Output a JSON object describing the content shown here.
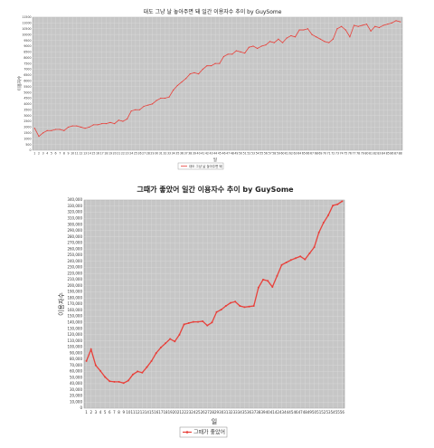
{
  "chart_data": [
    {
      "type": "line",
      "title": "대도 그냥 날 놓아주면 돼 일간 이용자수 추이 by GuySome",
      "xlabel": "일",
      "ylabel": "이용자수",
      "legend": {
        "position": "bottom-center",
        "entries": [
          "대도 그냥 날 놓아주면 돼"
        ]
      },
      "grid": true,
      "x": [
        1,
        2,
        3,
        4,
        5,
        6,
        7,
        8,
        9,
        10,
        11,
        12,
        13,
        14,
        15,
        16,
        17,
        18,
        19,
        20,
        21,
        22,
        23,
        24,
        25,
        26,
        27,
        28,
        29,
        30,
        31,
        32,
        33,
        34,
        35,
        36,
        37,
        38,
        39,
        40,
        41,
        42,
        43,
        44,
        45,
        46,
        47,
        48,
        49,
        50,
        51,
        52,
        53,
        54,
        55,
        56,
        57,
        58,
        59,
        60,
        61,
        62,
        63,
        64,
        65,
        66,
        67,
        68,
        69,
        70,
        71,
        72,
        73,
        74,
        75,
        76,
        77,
        78,
        79,
        80,
        81,
        82,
        83,
        84,
        85,
        86,
        87,
        88
      ],
      "ylim": [
        0,
        11500
      ],
      "yticks": [
        0,
        500,
        1000,
        1500,
        2000,
        2500,
        3000,
        3500,
        4000,
        4500,
        5000,
        5500,
        6000,
        6500,
        7000,
        7500,
        8000,
        8500,
        9000,
        9500,
        10000,
        10500,
        11000,
        11500
      ],
      "series": [
        {
          "name": "대도 그냥 날 놓아주면 돼",
          "color": "#e8403a",
          "values": [
            1900,
            1200,
            1500,
            1700,
            1700,
            1800,
            1800,
            1700,
            2000,
            2100,
            2100,
            2000,
            1900,
            2000,
            2200,
            2200,
            2300,
            2300,
            2400,
            2300,
            2600,
            2500,
            2700,
            3400,
            3500,
            3500,
            3800,
            3900,
            4000,
            4300,
            4500,
            4500,
            4600,
            5200,
            5600,
            5900,
            6200,
            6600,
            6700,
            6600,
            7000,
            7300,
            7300,
            7500,
            7500,
            8100,
            8300,
            8300,
            8600,
            8500,
            8400,
            8900,
            9000,
            8800,
            9000,
            9100,
            9400,
            9300,
            9600,
            9300,
            9700,
            9900,
            9800,
            10400,
            10400,
            10500,
            10000,
            9800,
            9600,
            9400,
            9300,
            9600,
            10500,
            10700,
            10400,
            9800,
            10800,
            10700,
            10800,
            10900,
            10300,
            10700,
            10600,
            10800,
            10900,
            11000,
            11200,
            11100
          ]
        }
      ]
    },
    {
      "type": "line",
      "title": "그때가 좋았어 일간 이용자수 추이 by GuySome",
      "xlabel": "일",
      "ylabel": "이용자수",
      "legend": {
        "position": "bottom-center",
        "entries": [
          "그때가 좋았어"
        ]
      },
      "grid": true,
      "x": [
        1,
        2,
        3,
        4,
        5,
        6,
        7,
        8,
        9,
        10,
        11,
        12,
        13,
        14,
        15,
        16,
        17,
        18,
        19,
        20,
        21,
        22,
        23,
        24,
        25,
        26,
        27,
        28,
        29,
        30,
        31,
        32,
        33,
        34,
        35,
        36,
        37,
        38,
        39,
        40,
        41,
        42,
        43,
        44,
        45,
        46,
        47,
        48,
        49,
        50,
        51,
        52,
        53,
        54,
        55,
        56
      ],
      "ylim": [
        0,
        340000
      ],
      "yticks": [
        0,
        10000,
        20000,
        30000,
        40000,
        50000,
        60000,
        70000,
        80000,
        90000,
        100000,
        110000,
        120000,
        130000,
        140000,
        150000,
        160000,
        170000,
        180000,
        190000,
        200000,
        210000,
        220000,
        230000,
        240000,
        250000,
        260000,
        270000,
        280000,
        290000,
        300000,
        310000,
        320000,
        330000,
        340000
      ],
      "ytick_labels": [
        "0",
        "10,000",
        "20,000",
        "30,000",
        "40,000",
        "50,000",
        "60,000",
        "70,000",
        "80,000",
        "90,000",
        "100,000",
        "110,000",
        "120,000",
        "130,000",
        "140,000",
        "150,000",
        "160,000",
        "170,000",
        "180,000",
        "190,000",
        "200,000",
        "210,000",
        "220,000",
        "230,000",
        "240,000",
        "250,000",
        "260,000",
        "270,000",
        "280,000",
        "290,000",
        "300,000",
        "310,000",
        "320,000",
        "330,000",
        "340,000"
      ],
      "series": [
        {
          "name": "그때가 좋았어",
          "color": "#e8403a",
          "values": [
            77000,
            96000,
            70000,
            61000,
            51000,
            44000,
            43000,
            43000,
            41000,
            45000,
            55000,
            60000,
            58000,
            67000,
            77000,
            90000,
            99000,
            106000,
            113000,
            109000,
            120000,
            137000,
            139000,
            141000,
            141000,
            142000,
            135000,
            140000,
            157000,
            161000,
            167000,
            172000,
            174000,
            167000,
            165000,
            166000,
            167000,
            197000,
            210000,
            208000,
            198000,
            216000,
            234000,
            238000,
            242000,
            245000,
            248000,
            243000,
            253000,
            263000,
            287000,
            303000,
            315000,
            331000,
            333000,
            338000
          ]
        }
      ]
    }
  ]
}
